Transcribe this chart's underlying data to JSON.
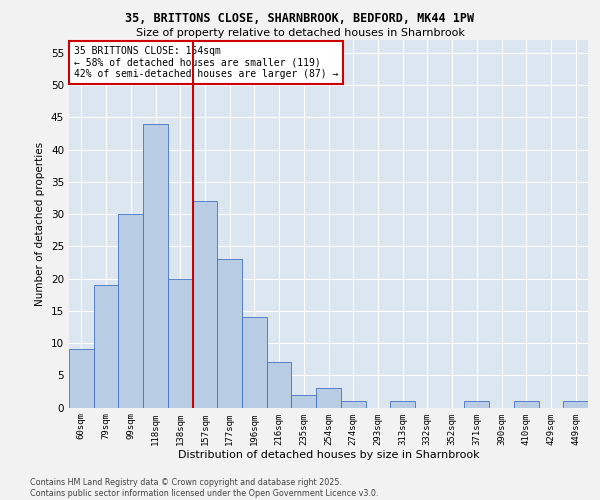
{
  "title_line1": "35, BRITTONS CLOSE, SHARNBROOK, BEDFORD, MK44 1PW",
  "title_line2": "Size of property relative to detached houses in Sharnbrook",
  "xlabel": "Distribution of detached houses by size in Sharnbrook",
  "ylabel": "Number of detached properties",
  "categories": [
    "60sqm",
    "79sqm",
    "99sqm",
    "118sqm",
    "138sqm",
    "157sqm",
    "177sqm",
    "196sqm",
    "216sqm",
    "235sqm",
    "254sqm",
    "274sqm",
    "293sqm",
    "313sqm",
    "332sqm",
    "352sqm",
    "371sqm",
    "390sqm",
    "410sqm",
    "429sqm",
    "449sqm"
  ],
  "values": [
    9,
    19,
    30,
    44,
    20,
    32,
    23,
    14,
    7,
    2,
    3,
    1,
    0,
    1,
    0,
    0,
    1,
    0,
    1,
    0,
    1
  ],
  "bar_color": "#b8cce4",
  "bar_edge_color": "#4472c4",
  "vline_color": "#cc0000",
  "annotation_text": "35 BRITTONS CLOSE: 154sqm\n← 58% of detached houses are smaller (119)\n42% of semi-detached houses are larger (87) →",
  "ylim_max": 57,
  "yticks": [
    0,
    5,
    10,
    15,
    20,
    25,
    30,
    35,
    40,
    45,
    50,
    55
  ],
  "background_color": "#dce6f1",
  "grid_color": "#ffffff",
  "fig_bg": "#f2f2f2",
  "footer": "Contains HM Land Registry data © Crown copyright and database right 2025.\nContains public sector information licensed under the Open Government Licence v3.0."
}
